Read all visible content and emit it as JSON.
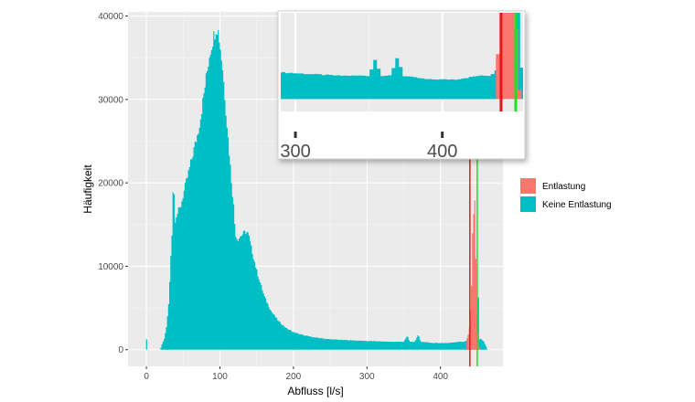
{
  "chart_data": {
    "type": "bar",
    "title": "",
    "xlabel": "Abfluss [l/s]",
    "ylabel": "Häufigkeit",
    "xlim": [
      -25,
      485
    ],
    "ylim": [
      -2000,
      40500
    ],
    "x_ticks": [
      0,
      100,
      200,
      300,
      400
    ],
    "y_ticks": [
      0,
      10000,
      20000,
      30000,
      40000
    ],
    "grid": true,
    "legend_position": "right",
    "colors": {
      "Entlastung": "#F8766D",
      "Keine Entlastung": "#00BFC4",
      "red_line": "#e8151c",
      "green_line": "#20e020"
    },
    "series": [
      {
        "name": "Entlastung",
        "color": "#F8766D"
      },
      {
        "name": "Keine Entlastung",
        "color": "#00BFC4"
      }
    ],
    "keine_points": [
      [
        0,
        1800
      ],
      [
        0.8,
        0
      ],
      [
        19,
        0
      ],
      [
        21,
        600
      ],
      [
        24,
        1200
      ],
      [
        27,
        2500
      ],
      [
        30,
        5000
      ],
      [
        32,
        8500
      ],
      [
        34,
        13000
      ],
      [
        36,
        15500
      ],
      [
        37,
        29600
      ],
      [
        38,
        15000
      ],
      [
        40,
        16000
      ],
      [
        43,
        16500
      ],
      [
        46,
        17000
      ],
      [
        50,
        18500
      ],
      [
        54,
        20000
      ],
      [
        58,
        21500
      ],
      [
        62,
        23000
      ],
      [
        66,
        24500
      ],
      [
        70,
        26000
      ],
      [
        74,
        28000
      ],
      [
        78,
        30500
      ],
      [
        82,
        33000
      ],
      [
        86,
        35500
      ],
      [
        90,
        37000
      ],
      [
        93,
        38000
      ],
      [
        95,
        38700
      ],
      [
        97,
        38500
      ],
      [
        99,
        37500
      ],
      [
        101,
        36000
      ],
      [
        104,
        33500
      ],
      [
        108,
        29000
      ],
      [
        112,
        24500
      ],
      [
        116,
        20000
      ],
      [
        119,
        17000
      ],
      [
        121,
        14000
      ],
      [
        124,
        13200
      ],
      [
        127,
        13500
      ],
      [
        130,
        13800
      ],
      [
        133,
        14000
      ],
      [
        136,
        14200
      ],
      [
        139,
        13800
      ],
      [
        142,
        12500
      ],
      [
        146,
        11000
      ],
      [
        150,
        9500
      ],
      [
        155,
        8000
      ],
      [
        160,
        6500
      ],
      [
        165,
        5500
      ],
      [
        170,
        4600
      ],
      [
        180,
        3400
      ],
      [
        190,
        2600
      ],
      [
        200,
        2100
      ],
      [
        215,
        1700
      ],
      [
        230,
        1450
      ],
      [
        250,
        1250
      ],
      [
        270,
        1150
      ],
      [
        300,
        1050
      ],
      [
        330,
        950
      ],
      [
        350,
        950
      ],
      [
        355,
        1700
      ],
      [
        358,
        950
      ],
      [
        365,
        950
      ],
      [
        370,
        1800
      ],
      [
        373,
        950
      ],
      [
        390,
        800
      ],
      [
        410,
        800
      ],
      [
        425,
        950
      ],
      [
        432,
        950
      ],
      [
        435,
        1050
      ],
      [
        437,
        1200
      ],
      [
        440,
        1400
      ],
      [
        442,
        1700
      ],
      [
        445,
        3500
      ],
      [
        447,
        13800
      ],
      [
        448,
        1600
      ],
      [
        450,
        1400
      ],
      [
        451,
        21000
      ],
      [
        452,
        1200
      ],
      [
        455,
        1300
      ],
      [
        459,
        1000
      ],
      [
        462,
        400
      ],
      [
        464,
        0
      ]
    ],
    "entlastung_points": [
      [
        436,
        1300
      ],
      [
        439,
        2200
      ],
      [
        442,
        6600
      ],
      [
        444,
        15000
      ],
      [
        446,
        17000
      ],
      [
        447,
        18200
      ],
      [
        448,
        12000
      ],
      [
        450,
        3000
      ],
      [
        452,
        1500
      ],
      [
        453,
        0
      ]
    ],
    "vlines": [
      {
        "x": 440,
        "color": "#e8151c"
      },
      {
        "x": 450,
        "color": "#20e020"
      }
    ],
    "inset": {
      "x_ticks": [
        300,
        400
      ],
      "xlim": [
        290,
        455
      ],
      "ylim": [
        -500,
        3500
      ]
    }
  }
}
